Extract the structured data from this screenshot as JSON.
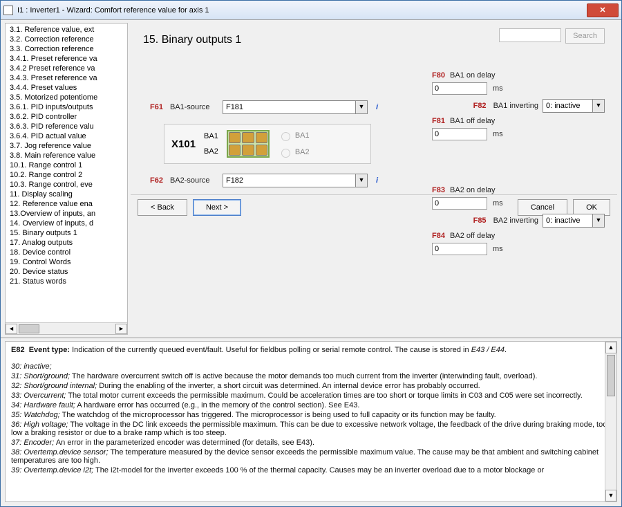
{
  "window": {
    "title": "I1 : Inverter1 - Wizard: Comfort reference value for axis 1"
  },
  "search": {
    "placeholder": "",
    "button": "Search"
  },
  "heading": "15. Binary outputs 1",
  "tree": {
    "items": [
      "3.1. Reference value, ext",
      "3.2. Correction reference",
      "3.3. Correction reference",
      "3.4.1. Preset reference va",
      "3.4.2 Preset reference va",
      "3.4.3. Preset reference va",
      "3.4.4. Preset values",
      "3.5. Motorized potentiome",
      "3.6.1. PID inputs/outputs",
      "3.6.2. PID controller",
      "3.6.3. PID reference valu",
      "3.6.4. PID actual value",
      "3.7. Jog reference value",
      "3.8. Main reference value",
      "10.1. Range control 1",
      "10.2. Range control 2",
      "10.3. Range control, eve",
      "11. Display scaling",
      "12. Reference value ena",
      "13.Overview of inputs, an",
      "14. Overview of inputs, d",
      "15. Binary outputs 1",
      "17. Analog outputs",
      "18. Device control",
      "19. Control Words",
      "20. Device status",
      "21. Status words"
    ]
  },
  "terminal": {
    "block": "X101",
    "ba1": "BA1",
    "ba2": "BA2",
    "radio_ba1": "BA1",
    "radio_ba2": "BA2"
  },
  "params": {
    "f61": {
      "code": "F61",
      "desc": "BA1-source",
      "value": "F181"
    },
    "f62": {
      "code": "F62",
      "desc": "BA2-source",
      "value": "F182"
    },
    "f80": {
      "code": "F80",
      "desc": "BA1 on delay",
      "value": "0",
      "unit": "ms"
    },
    "f81": {
      "code": "F81",
      "desc": "BA1 off delay",
      "value": "0",
      "unit": "ms"
    },
    "f82": {
      "code": "F82",
      "desc": "BA1 inverting",
      "value": "0: inactive"
    },
    "f83": {
      "code": "F83",
      "desc": "BA2 on delay",
      "value": "0",
      "unit": "ms"
    },
    "f84": {
      "code": "F84",
      "desc": "BA2 off delay",
      "value": "0",
      "unit": "ms"
    },
    "f85": {
      "code": "F85",
      "desc": "BA2 inverting",
      "value": "0: inactive"
    }
  },
  "buttons": {
    "back": "< Back",
    "next": "Next >",
    "cancel": "Cancel",
    "ok": "OK"
  },
  "help": {
    "header_code": "E82",
    "header_label": "Event type:",
    "header_text": "Indication of the currently queued event/fault. Useful for fieldbus polling or serial remote control. The cause is stored in ",
    "header_ref": "E43 / E44",
    "lines": [
      {
        "n": "30",
        "t": "inactive;",
        "rest": ""
      },
      {
        "n": "31",
        "t": "Short/ground;",
        "rest": " The hardware overcurrent switch off is active because the motor demands too much current from the inverter (interwinding fault, overload)."
      },
      {
        "n": "32",
        "t": "Short/ground internal;",
        "rest": " During the enabling of the inverter, a short circuit was determined. An internal device error has probably occurred."
      },
      {
        "n": "33",
        "t": "Overcurrent;",
        "rest": " The total motor current exceeds the permissible maximum. Could be acceleration times are too short or torque limits in C03 and C05 were set incorrectly."
      },
      {
        "n": "34",
        "t": "Hardware fault;",
        "rest": " A hardware error has occurred (e.g., in the memory of the control section). See E43."
      },
      {
        "n": "35",
        "t": "Watchdog;",
        "rest": " The watchdog of the microprocessor has triggered. The microprocessor is being used to full capacity or its function may be faulty."
      },
      {
        "n": "36",
        "t": "High voltage;",
        "rest": " The voltage in the DC link exceeds the permissible maximum. This can be due to excessive network voltage, the feedback of the drive during braking mode, too low a braking resistor or due to a brake ramp which is too steep."
      },
      {
        "n": "37",
        "t": "Encoder;",
        "rest": " An error in the parameterized encoder was determined (for details, see E43)."
      },
      {
        "n": "38",
        "t": "Overtemp.device sensor;",
        "rest": " The temperature measured by the device sensor exceeds the permissible maximum value. The cause may be that ambient and switching cabinet temperatures are too high."
      },
      {
        "n": "39",
        "t": "Overtemp.device i2t;",
        "rest": " The i2t-model for the inverter exceeds 100 % of the thermal capacity. Causes may be an inverter overload due to a motor blockage or"
      }
    ]
  },
  "colors": {
    "param": "#b02020",
    "link": "#2255cc"
  }
}
